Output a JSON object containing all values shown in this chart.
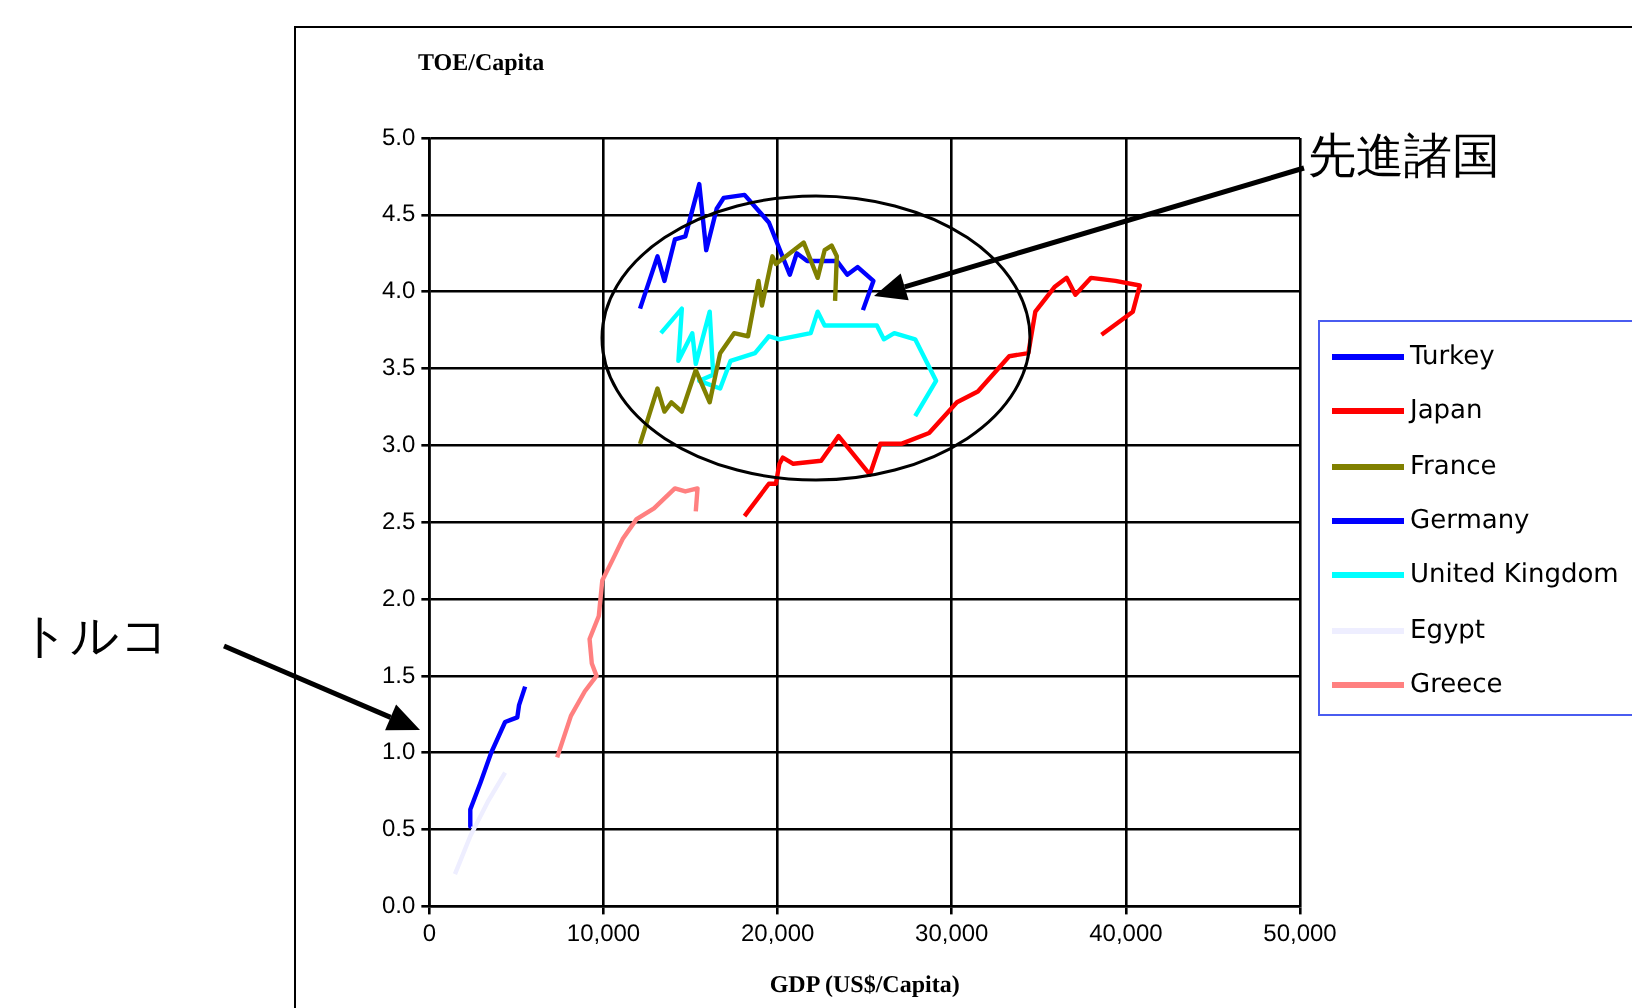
{
  "chart_data": {
    "type": "line",
    "ylabel": "TOE/Capita",
    "xlabel": "GDP (US$/Capita)",
    "annotations": [
      "先進諸国",
      "トルコ"
    ],
    "xlim": [
      0,
      50000
    ],
    "xticks": [
      {
        "value": 0,
        "label": "0"
      },
      {
        "value": 10000,
        "label": "10,000"
      },
      {
        "value": 20000,
        "label": "20,000"
      },
      {
        "value": 30000,
        "label": "30,000"
      },
      {
        "value": 40000,
        "label": "40,000"
      },
      {
        "value": 50000,
        "label": "50,000"
      }
    ],
    "ylim": [
      0,
      5
    ],
    "yticks": [
      {
        "value": 0,
        "label": "0.0"
      },
      {
        "value": 0.5,
        "label": "0.5"
      },
      {
        "value": 1,
        "label": "1.0"
      },
      {
        "value": 1.5,
        "label": "1.5"
      },
      {
        "value": 2,
        "label": "2.0"
      },
      {
        "value": 2.5,
        "label": "2.5"
      },
      {
        "value": 3,
        "label": "3.0"
      },
      {
        "value": 3.5,
        "label": "3.5"
      },
      {
        "value": 4,
        "label": "4.0"
      },
      {
        "value": 4.5,
        "label": "4.5"
      },
      {
        "value": 5,
        "label": "5.0"
      }
    ],
    "grid": true,
    "legend": "right",
    "marker": "none",
    "line_style": "solid",
    "series": [
      {
        "name": "Turkey",
        "color": "#0000ff",
        "x": [
          2400,
          2350,
          2950,
          3550,
          4350,
          5050,
          5150,
          5500
        ],
        "values": [
          0.52,
          0.63,
          0.81,
          1.0,
          1.2,
          1.23,
          1.31,
          1.43
        ]
      },
      {
        "name": "Japan",
        "color": "#ff0000",
        "x": [
          18100,
          19500,
          19900,
          20100,
          20300,
          20900,
          22500,
          23500,
          25300,
          25900,
          27100,
          28700,
          30300,
          31500,
          33300,
          34400,
          34800,
          35900,
          36600,
          37100,
          38000,
          39400,
          40800,
          40400,
          38600
        ],
        "values": [
          2.54,
          2.75,
          2.75,
          2.88,
          2.92,
          2.88,
          2.9,
          3.06,
          2.81,
          3.01,
          3.01,
          3.08,
          3.28,
          3.35,
          3.58,
          3.6,
          3.87,
          4.03,
          4.09,
          3.98,
          4.09,
          4.07,
          4.04,
          3.87,
          3.72
        ]
      },
      {
        "name": "France",
        "color": "#808000",
        "x": [
          12100,
          13100,
          13500,
          13900,
          14500,
          15300,
          16100,
          16700,
          17500,
          18300,
          18900,
          19100,
          19700,
          19900,
          21500,
          22300,
          22700,
          23100,
          23400,
          23300
        ],
        "values": [
          3.01,
          3.37,
          3.22,
          3.28,
          3.22,
          3.49,
          3.28,
          3.6,
          3.73,
          3.71,
          4.07,
          3.91,
          4.23,
          4.18,
          4.32,
          4.09,
          4.27,
          4.3,
          4.23,
          3.94
        ]
      },
      {
        "name": "Germany",
        "color": "#0000ff",
        "x": [
          12100,
          13100,
          13500,
          14100,
          14700,
          15500,
          15900,
          16500,
          16900,
          18100,
          19500,
          20700,
          21100,
          21700,
          23400,
          24000,
          24600,
          25500,
          24900
        ],
        "values": [
          3.89,
          4.23,
          4.07,
          4.34,
          4.36,
          4.7,
          4.27,
          4.54,
          4.61,
          4.63,
          4.45,
          4.11,
          4.25,
          4.2,
          4.2,
          4.11,
          4.16,
          4.07,
          3.88
        ]
      },
      {
        "name": "United Kingdom",
        "color": "#00ffff",
        "x": [
          13300,
          14500,
          14300,
          15100,
          15300,
          16100,
          16300,
          15500,
          16700,
          17300,
          18700,
          19500,
          20100,
          21900,
          22300,
          22700,
          25700,
          26100,
          26700,
          27900,
          29100,
          27900
        ],
        "values": [
          3.73,
          3.89,
          3.55,
          3.73,
          3.53,
          3.87,
          3.46,
          3.42,
          3.37,
          3.55,
          3.6,
          3.71,
          3.69,
          3.73,
          3.87,
          3.78,
          3.78,
          3.69,
          3.73,
          3.69,
          3.42,
          3.19
        ]
      },
      {
        "name": "Egypt",
        "color": "#eeeeff",
        "x": [
          1470,
          2360,
          3350,
          4350
        ],
        "values": [
          0.21,
          0.46,
          0.68,
          0.87
        ]
      },
      {
        "name": "Greece",
        "color": "#ff8080",
        "x": [
          7340,
          8130,
          8930,
          9600,
          9330,
          9200,
          9730,
          9930,
          10500,
          11100,
          11900,
          12900,
          14100,
          14700,
          15400,
          15300
        ],
        "values": [
          0.97,
          1.24,
          1.4,
          1.5,
          1.58,
          1.74,
          1.89,
          2.12,
          2.25,
          2.39,
          2.52,
          2.59,
          2.72,
          2.7,
          2.72,
          2.57
        ]
      }
    ]
  }
}
